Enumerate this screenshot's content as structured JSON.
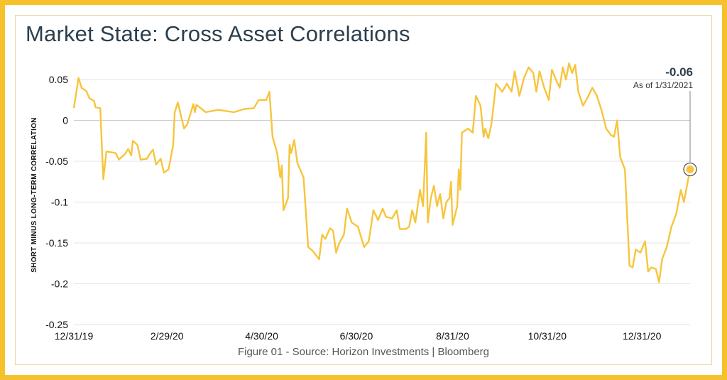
{
  "title": "Market State: Cross Asset Correlations",
  "caption": "Figure 01 - Source: Horizon Investments | Bloomberg",
  "colors": {
    "frame": "#f5c22b",
    "line": "#f7c53c",
    "title": "#2c3e4c",
    "grid": "#e4e4e4"
  },
  "chart_data": {
    "type": "line",
    "title": "Market State: Cross Asset Correlations",
    "xlabel": "",
    "ylabel": "SHORT MINUS LONG-TERM CORRELATION",
    "ylim": [
      -0.25,
      0.05
    ],
    "y_ticks": [
      0.05,
      0,
      -0.05,
      -0.1,
      -0.15,
      -0.2,
      -0.25
    ],
    "y_tick_labels": [
      "0.05",
      "0",
      "-0.05",
      "-0.1",
      "-0.15",
      "-0.2",
      "-0.25"
    ],
    "x_ticks": [
      "2019-12-31",
      "2020-02-29",
      "2020-04-30",
      "2020-06-30",
      "2020-08-31",
      "2020-10-31",
      "2020-12-31"
    ],
    "x_tick_labels": [
      "12/31/19",
      "2/29/20",
      "4/30/20",
      "6/30/20",
      "8/31/20",
      "10/31/20",
      "12/31/20"
    ],
    "xlim": [
      "2019-12-31",
      "2021-01-31"
    ],
    "grid": "horizontal",
    "series": [
      {
        "values": [
          [
            "2019-12-31",
            0.015
          ],
          [
            "2020-01-03",
            0.052
          ],
          [
            "2020-01-05",
            0.04
          ],
          [
            "2020-01-08",
            0.036
          ],
          [
            "2020-01-10",
            0.027
          ],
          [
            "2020-01-13",
            0.024
          ],
          [
            "2020-01-14",
            0.016
          ],
          [
            "2020-01-17",
            0.015
          ],
          [
            "2020-01-19",
            -0.072
          ],
          [
            "2020-01-21",
            -0.038
          ],
          [
            "2020-01-27",
            -0.04
          ],
          [
            "2020-01-29",
            -0.048
          ],
          [
            "2020-02-02",
            -0.041
          ],
          [
            "2020-02-04",
            -0.035
          ],
          [
            "2020-02-06",
            -0.043
          ],
          [
            "2020-02-07",
            -0.025
          ],
          [
            "2020-02-10",
            -0.03
          ],
          [
            "2020-02-12",
            -0.048
          ],
          [
            "2020-02-16",
            -0.047
          ],
          [
            "2020-02-19",
            -0.038
          ],
          [
            "2020-02-20",
            -0.036
          ],
          [
            "2020-02-22",
            -0.054
          ],
          [
            "2020-02-25",
            -0.047
          ],
          [
            "2020-02-27",
            -0.064
          ],
          [
            "2020-03-01",
            -0.06
          ],
          [
            "2020-03-04",
            -0.03
          ],
          [
            "2020-03-05",
            0.01
          ],
          [
            "2020-03-07",
            0.022
          ],
          [
            "2020-03-11",
            -0.01
          ],
          [
            "2020-03-13",
            -0.005
          ],
          [
            "2020-03-17",
            0.02
          ],
          [
            "2020-03-18",
            0.01
          ],
          [
            "2020-03-19",
            0.019
          ],
          [
            "2020-03-25",
            0.01
          ],
          [
            "2020-04-02",
            0.013
          ],
          [
            "2020-04-12",
            0.01
          ],
          [
            "2020-04-19",
            0.014
          ],
          [
            "2020-04-25",
            0.015
          ],
          [
            "2020-04-28",
            0.025
          ],
          [
            "2020-05-03",
            0.025
          ],
          [
            "2020-05-05",
            0.035
          ],
          [
            "2020-05-07",
            -0.02
          ],
          [
            "2020-05-10",
            -0.04
          ],
          [
            "2020-05-12",
            -0.07
          ],
          [
            "2020-05-13",
            -0.055
          ],
          [
            "2020-05-14",
            -0.11
          ],
          [
            "2020-05-17",
            -0.095
          ],
          [
            "2020-05-18",
            -0.03
          ],
          [
            "2020-05-19",
            -0.04
          ],
          [
            "2020-05-21",
            -0.024
          ],
          [
            "2020-05-23",
            -0.052
          ],
          [
            "2020-05-27",
            -0.07
          ],
          [
            "2020-05-30",
            -0.155
          ],
          [
            "2020-06-02",
            -0.16
          ],
          [
            "2020-06-06",
            -0.17
          ],
          [
            "2020-06-08",
            -0.14
          ],
          [
            "2020-06-10",
            -0.145
          ],
          [
            "2020-06-13",
            -0.132
          ],
          [
            "2020-06-15",
            -0.135
          ],
          [
            "2020-06-17",
            -0.162
          ],
          [
            "2020-06-19",
            -0.15
          ],
          [
            "2020-06-22",
            -0.14
          ],
          [
            "2020-06-24",
            -0.108
          ],
          [
            "2020-06-27",
            -0.125
          ],
          [
            "2020-07-01",
            -0.13
          ],
          [
            "2020-07-05",
            -0.155
          ],
          [
            "2020-07-08",
            -0.148
          ],
          [
            "2020-07-11",
            -0.11
          ],
          [
            "2020-07-14",
            -0.122
          ],
          [
            "2020-07-17",
            -0.108
          ],
          [
            "2020-07-19",
            -0.118
          ],
          [
            "2020-07-23",
            -0.12
          ],
          [
            "2020-07-26",
            -0.11
          ],
          [
            "2020-07-28",
            -0.133
          ],
          [
            "2020-08-01",
            -0.133
          ],
          [
            "2020-08-03",
            -0.13
          ],
          [
            "2020-08-05",
            -0.11
          ],
          [
            "2020-08-07",
            -0.125
          ],
          [
            "2020-08-10",
            -0.085
          ],
          [
            "2020-08-12",
            -0.105
          ],
          [
            "2020-08-14",
            -0.015
          ],
          [
            "2020-08-15",
            -0.125
          ],
          [
            "2020-08-17",
            -0.095
          ],
          [
            "2020-08-19",
            -0.08
          ],
          [
            "2020-08-21",
            -0.105
          ],
          [
            "2020-08-23",
            -0.09
          ],
          [
            "2020-08-25",
            -0.12
          ],
          [
            "2020-08-27",
            -0.1
          ],
          [
            "2020-08-29",
            -0.095
          ],
          [
            "2020-08-30",
            -0.075
          ],
          [
            "2020-08-31",
            -0.128
          ],
          [
            "2020-09-03",
            -0.105
          ],
          [
            "2020-09-04",
            -0.06
          ],
          [
            "2020-09-05",
            -0.085
          ],
          [
            "2020-09-06",
            -0.015
          ],
          [
            "2020-09-10",
            -0.01
          ],
          [
            "2020-09-13",
            -0.015
          ],
          [
            "2020-09-15",
            0.03
          ],
          [
            "2020-09-18",
            0.018
          ],
          [
            "2020-09-20",
            -0.02
          ],
          [
            "2020-09-21",
            -0.01
          ],
          [
            "2020-09-23",
            -0.022
          ],
          [
            "2020-09-25",
            -0.005
          ],
          [
            "2020-09-28",
            0.045
          ],
          [
            "2020-10-02",
            0.035
          ],
          [
            "2020-10-05",
            0.045
          ],
          [
            "2020-10-08",
            0.035
          ],
          [
            "2020-10-10",
            0.06
          ],
          [
            "2020-10-13",
            0.03
          ],
          [
            "2020-10-16",
            0.052
          ],
          [
            "2020-10-19",
            0.065
          ],
          [
            "2020-10-22",
            0.058
          ],
          [
            "2020-10-24",
            0.035
          ],
          [
            "2020-10-26",
            0.06
          ],
          [
            "2020-10-29",
            0.04
          ],
          [
            "2020-11-01",
            0.025
          ],
          [
            "2020-11-03",
            0.062
          ],
          [
            "2020-11-06",
            0.048
          ],
          [
            "2020-11-08",
            0.04
          ],
          [
            "2020-11-10",
            0.065
          ],
          [
            "2020-11-12",
            0.05
          ],
          [
            "2020-11-14",
            0.07
          ],
          [
            "2020-11-16",
            0.058
          ],
          [
            "2020-11-18",
            0.068
          ],
          [
            "2020-11-20",
            0.035
          ],
          [
            "2020-11-23",
            0.018
          ],
          [
            "2020-11-26",
            0.028
          ],
          [
            "2020-11-29",
            0.04
          ],
          [
            "2020-12-02",
            0.03
          ],
          [
            "2020-12-05",
            0.012
          ],
          [
            "2020-12-08",
            -0.01
          ],
          [
            "2020-12-11",
            -0.018
          ],
          [
            "2020-12-13",
            -0.02
          ],
          [
            "2020-12-15",
            0.0
          ],
          [
            "2020-12-17",
            -0.045
          ],
          [
            "2020-12-20",
            -0.06
          ],
          [
            "2020-12-23",
            -0.178
          ],
          [
            "2020-12-25",
            -0.18
          ],
          [
            "2020-12-27",
            -0.158
          ],
          [
            "2020-12-30",
            -0.162
          ],
          [
            "2021-01-02",
            -0.148
          ],
          [
            "2021-01-04",
            -0.185
          ],
          [
            "2021-01-06",
            -0.18
          ],
          [
            "2021-01-09",
            -0.182
          ],
          [
            "2021-01-11",
            -0.198
          ],
          [
            "2021-01-13",
            -0.17
          ],
          [
            "2021-01-16",
            -0.155
          ],
          [
            "2021-01-19",
            -0.13
          ],
          [
            "2021-01-22",
            -0.115
          ],
          [
            "2021-01-25",
            -0.085
          ],
          [
            "2021-01-27",
            -0.1
          ],
          [
            "2021-01-31",
            -0.06
          ]
        ]
      }
    ],
    "annotations": [
      {
        "x": "2021-01-31",
        "y": -0.06,
        "label": "-0.06",
        "sublabel": "As of 1/31/2021"
      }
    ]
  }
}
